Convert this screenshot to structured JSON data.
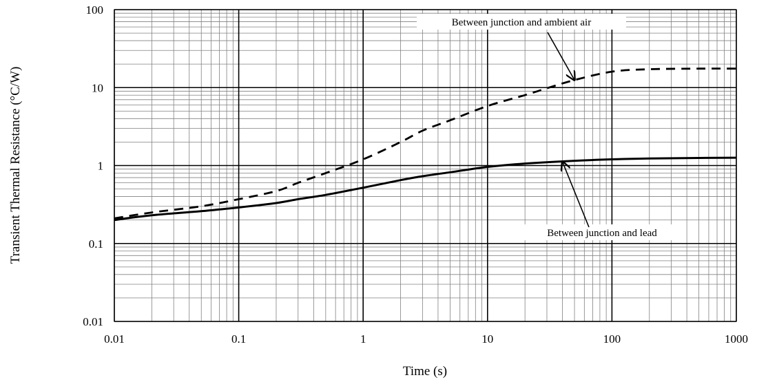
{
  "chart_data": {
    "type": "line",
    "title": "",
    "xlabel": "Time (s)",
    "ylabel": "Transient Thermal Resistance (°C/W)",
    "xscale": "log",
    "yscale": "log",
    "xlim": [
      0.01,
      1000
    ],
    "ylim": [
      0.01,
      100
    ],
    "grid": "major and minor (log decades)",
    "legend": "none",
    "x_tick_labels": [
      "0.01",
      "0.1",
      "1",
      "10",
      "100",
      "1000"
    ],
    "y_tick_labels": [
      "0.01",
      "0.1",
      "1",
      "10",
      "100"
    ],
    "x_tick_values": [
      0.01,
      0.1,
      1,
      10,
      100,
      1000
    ],
    "y_tick_values": [
      0.01,
      0.1,
      1,
      10,
      100
    ],
    "series": [
      {
        "name": "Between junction and ambient air",
        "style": "dashed",
        "x": [
          0.01,
          0.02,
          0.05,
          0.1,
          0.2,
          0.3,
          0.5,
          1,
          2,
          3,
          5,
          10,
          20,
          30,
          50,
          100,
          200,
          500,
          1000
        ],
        "y": [
          0.21,
          0.25,
          0.3,
          0.37,
          0.47,
          0.6,
          0.8,
          1.2,
          2.0,
          2.8,
          3.8,
          5.8,
          8.0,
          9.8,
          12.5,
          16.0,
          17.2,
          17.5,
          17.5
        ]
      },
      {
        "name": "Between junction and lead",
        "style": "solid",
        "x": [
          0.01,
          0.02,
          0.05,
          0.1,
          0.2,
          0.3,
          0.5,
          1,
          2,
          3,
          5,
          10,
          20,
          50,
          100,
          200,
          500,
          1000
        ],
        "y": [
          0.2,
          0.23,
          0.26,
          0.29,
          0.33,
          0.37,
          0.42,
          0.52,
          0.65,
          0.73,
          0.82,
          0.96,
          1.06,
          1.15,
          1.2,
          1.23,
          1.25,
          1.26
        ]
      }
    ],
    "annotations": [
      {
        "text": "Between junction and ambient air",
        "series": 0,
        "arrow_to": [
          50,
          12.5
        ]
      },
      {
        "text": "Between junction and lead",
        "series": 1,
        "arrow_to": [
          40,
          1.12
        ]
      }
    ],
    "colors": {
      "line": "#000000",
      "grid_major": "#000000",
      "grid_minor": "#808080"
    }
  }
}
